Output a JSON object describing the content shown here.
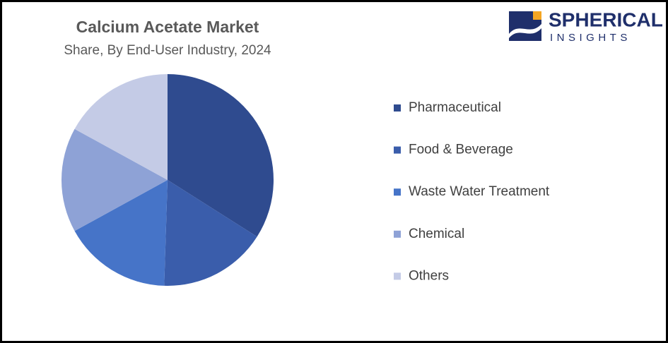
{
  "chart_data": {
    "type": "pie",
    "title": "Calcium Acetate Market",
    "subtitle": "Share, By End-User Industry, 2024",
    "categories": [
      "Pharmaceutical",
      "Food & Beverage",
      "Waste Water Treatment",
      "Chemical",
      "Others"
    ],
    "values": [
      34,
      16.5,
      16.5,
      16,
      17
    ],
    "colors": [
      "#2f4b8f",
      "#3a5dab",
      "#4674c8",
      "#8ea2d6",
      "#c4cbe6"
    ],
    "legend": "right"
  },
  "logo": {
    "name": "SPHERICAL",
    "tagline": "INSIGHTS"
  }
}
